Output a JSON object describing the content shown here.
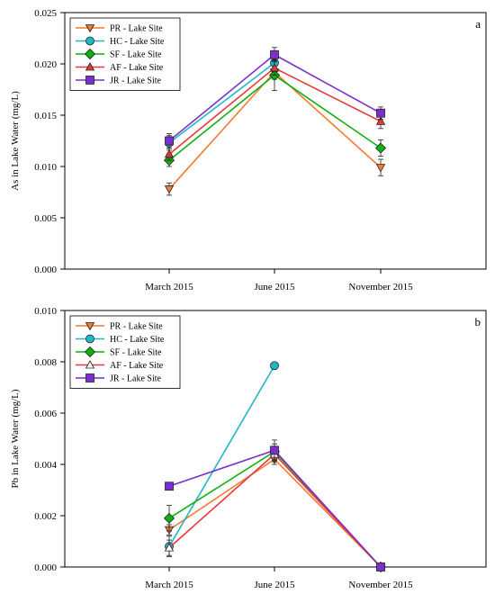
{
  "chart_data": [
    {
      "type": "line",
      "panel_label": "a",
      "ylabel": "As in Lake Water (mg/L)",
      "xlabel": "",
      "categories": [
        "March 2015",
        "June 2015",
        "November 2015"
      ],
      "ylim": [
        0,
        0.025
      ],
      "yticks": [
        "0.000",
        "0.005",
        "0.010",
        "0.015",
        "0.020",
        "0.025"
      ],
      "legend_position": "top-left",
      "series": [
        {
          "name": "PR - Lake Site",
          "color": "#f47a30",
          "marker": "triangle-down",
          "values": [
            0.0078,
            0.0192,
            0.0099
          ],
          "errors": [
            0.0006,
            0.0007,
            0.0008
          ]
        },
        {
          "name": "HC - Lake Site",
          "color": "#20b8c8",
          "marker": "circle",
          "values": [
            0.0123,
            0.0201,
            null
          ],
          "errors": [
            0.0007,
            0.0006,
            null
          ]
        },
        {
          "name": "SF - Lake Site",
          "color": "#10b010",
          "marker": "diamond",
          "values": [
            0.0106,
            0.0189,
            0.0118
          ],
          "errors": [
            0.0006,
            0.0015,
            0.0008
          ]
        },
        {
          "name": "AF - Lake Site",
          "color": "#e83838",
          "marker": "triangle-up",
          "values": [
            0.0112,
            0.0196,
            0.0144
          ],
          "errors": [
            0.0006,
            0.0007,
            0.0007
          ]
        },
        {
          "name": "JR - Lake Site",
          "color": "#7b2fcf",
          "marker": "square",
          "values": [
            0.0125,
            0.0209,
            0.0152
          ],
          "errors": [
            0.0007,
            0.0007,
            0.0006
          ]
        }
      ]
    },
    {
      "type": "line",
      "panel_label": "b",
      "ylabel": "Pb in Lake Water (mg/L)",
      "xlabel": "",
      "categories": [
        "March 2015",
        "June 2015",
        "November 2015"
      ],
      "ylim": [
        0,
        0.01
      ],
      "yticks": [
        "0.000",
        "0.002",
        "0.004",
        "0.006",
        "0.008",
        "0.010"
      ],
      "legend_position": "top-left",
      "series": [
        {
          "name": "PR - Lake Site",
          "color": "#f47a30",
          "marker": "triangle-down",
          "values": [
            0.00145,
            0.0042,
            0.0
          ],
          "errors": [
            0.0002,
            0.0002,
            0
          ]
        },
        {
          "name": "HC - Lake Site",
          "color": "#20b8c8",
          "marker": "circle",
          "values": [
            0.0008,
            0.00785,
            null
          ],
          "errors": [
            0.0004,
            0,
            null
          ]
        },
        {
          "name": "SF - Lake Site",
          "color": "#10b010",
          "marker": "diamond",
          "values": [
            0.0019,
            0.0045,
            0.0
          ],
          "errors": [
            0.0005,
            0.0003,
            0
          ]
        },
        {
          "name": "AF - Lake Site",
          "color": "#e83838",
          "marker": "triangle-up-open",
          "values": [
            0.00075,
            0.0044,
            0.0
          ],
          "errors": [
            0.0003,
            0.0003,
            0
          ]
        },
        {
          "name": "JR - Lake Site",
          "color": "#7b2fcf",
          "marker": "square",
          "values": [
            0.00315,
            0.00455,
            0.0
          ],
          "errors": [
            0,
            0.0004,
            0
          ]
        }
      ]
    }
  ]
}
